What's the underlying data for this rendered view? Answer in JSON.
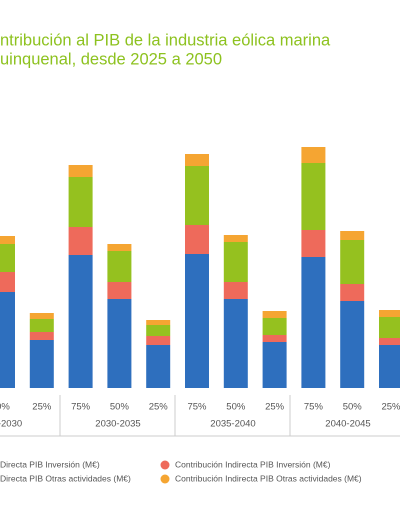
{
  "chart_data": {
    "type": "stacked_bar",
    "title_lines": [
      "ntribución al PIB de la industria eólica marina",
      "uinquenal, desde 2025 a 2050"
    ],
    "categories": [
      "0%",
      "25%",
      "75%",
      "50%",
      "25%",
      "75%",
      "50%",
      "25%",
      "75%",
      "50%",
      "25%"
    ],
    "group_labels": [
      "-2030",
      "2030-2035",
      "2035-2040",
      "2040-2045"
    ],
    "series": [
      {
        "name": "Directa PIB Inversión (M€)",
        "color": "#2e6fbe",
        "values": [
          96,
          48,
          133,
          89,
          43,
          134,
          89,
          46,
          131,
          87,
          43
        ]
      },
      {
        "name": "Contribución Indirecta PIB Inversión (M€)",
        "color": "#ee6a5b",
        "values": [
          20,
          8,
          28,
          17,
          9,
          29,
          17,
          7,
          27,
          17,
          7
        ]
      },
      {
        "name": "Directa PIB Otras actividades (M€)",
        "color": "#95c11f",
        "values": [
          28,
          13,
          50,
          31,
          11,
          59,
          40,
          17,
          67,
          44,
          21
        ]
      },
      {
        "name": "Contribución Indirecta PIB Otras actividades (M€)",
        "color": "#f5a532",
        "values": [
          8,
          6,
          12,
          7,
          5,
          12,
          7,
          7,
          16,
          9,
          7
        ]
      }
    ],
    "ylim": [
      0,
      250
    ]
  }
}
